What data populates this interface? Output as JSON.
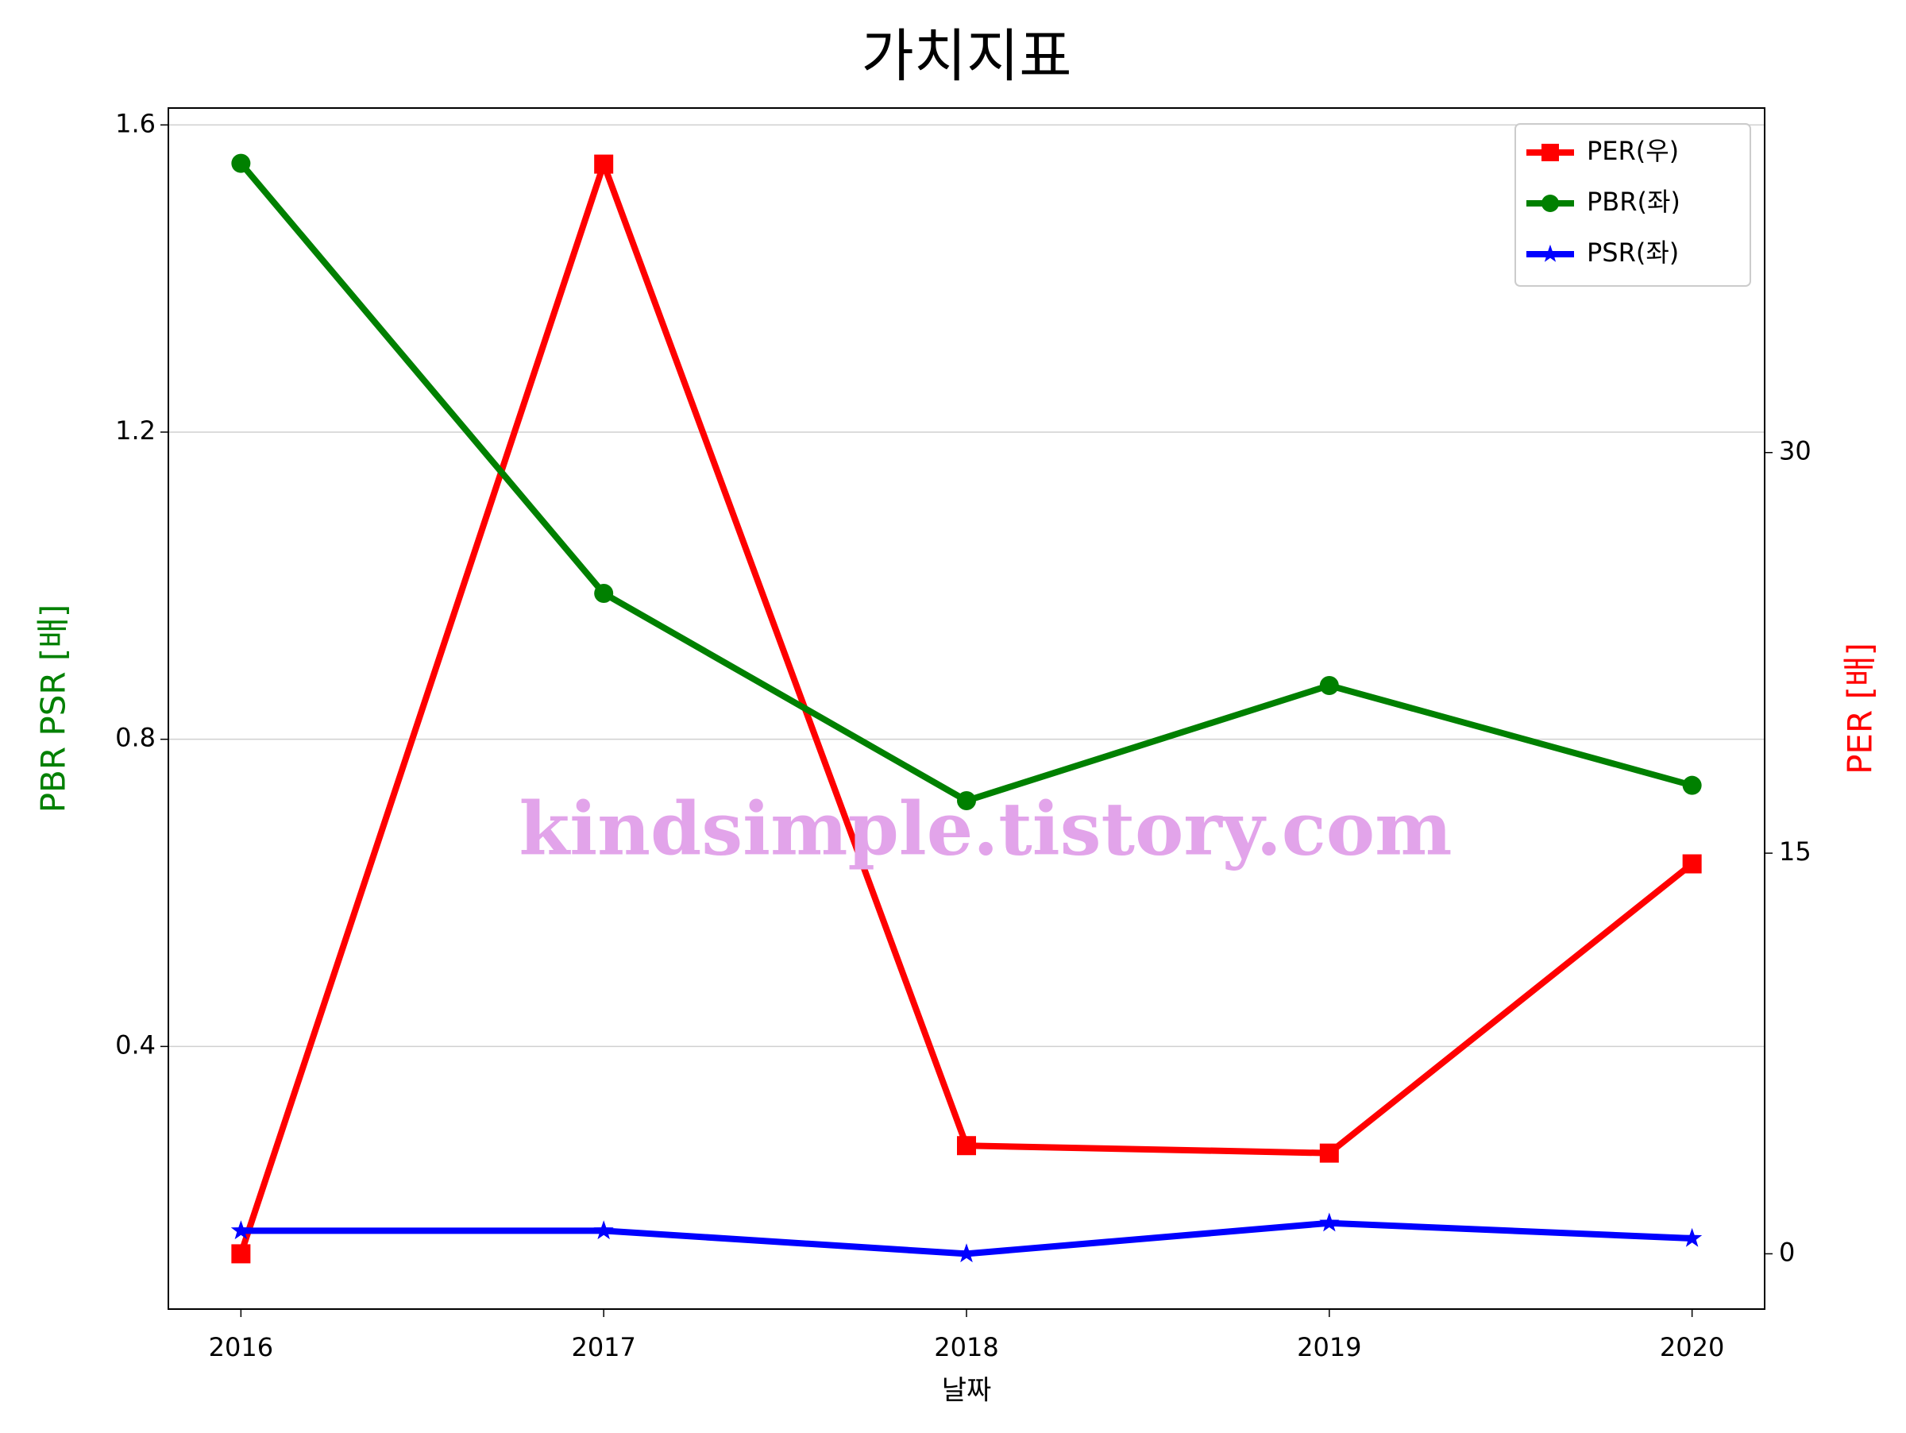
{
  "chart_data": {
    "type": "line",
    "title": "가치지표",
    "xlabel": "날짜",
    "ylabel": "PBR PSR [배]",
    "y2label": "PER [배]",
    "annotation": "kindsimple.tistory.com",
    "x": [
      2016,
      2017,
      2018,
      2019,
      2020
    ],
    "xlim": [
      2015.8,
      2020.2
    ],
    "xticks": [
      2016,
      2017,
      2018,
      2019,
      2020
    ],
    "ylim": [
      0.058,
      1.622
    ],
    "yticks": [
      0.4,
      0.8,
      1.2,
      1.6
    ],
    "y2lim": [
      -2.07,
      42.9
    ],
    "y2ticks": [
      0,
      15,
      30
    ],
    "ylabel_color": "#008000",
    "y2label_color": "#ff0000",
    "grid": true,
    "legend": "upper right",
    "series": [
      {
        "name": "PER(우)",
        "color": "#ff0000",
        "marker": "square",
        "axis": "y2",
        "values": [
          0,
          40.8,
          4.05,
          3.77,
          14.6
        ]
      },
      {
        "name": "PBR(좌)",
        "color": "#008000",
        "marker": "circle",
        "values": [
          1.55,
          0.99,
          0.72,
          0.87,
          0.74
        ]
      },
      {
        "name": "PSR(좌)",
        "color": "#0000ff",
        "marker": "star",
        "values": [
          0.16,
          0.16,
          0.13,
          0.17,
          0.15
        ]
      }
    ]
  }
}
